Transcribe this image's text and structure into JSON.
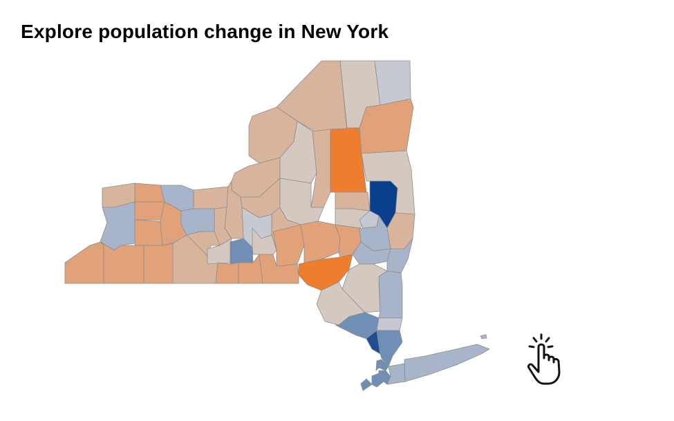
{
  "title": "Explore population change in New York",
  "palette": {
    "strong_loss": "#ef7d2e",
    "loss": "#e1a179",
    "slight_loss": "#d9b49d",
    "flat": "#d4c8c0",
    "neutral": "#c6c9d2",
    "slight_gain": "#a7b4c9",
    "gain": "#6f8fb7",
    "strong_gain": "#1f4f91",
    "max_gain": "#083e8c",
    "border": "#8d8d8d"
  },
  "icons": {
    "tap": "pointing-hand-tap-icon"
  },
  "counties": [
    {
      "id": "franklin",
      "category": "slight_loss"
    },
    {
      "id": "clinton",
      "category": "flat"
    },
    {
      "id": "essex",
      "category": "neutral"
    },
    {
      "id": "st_lawrence",
      "category": "slight_loss"
    },
    {
      "id": "jefferson",
      "category": "slight_loss"
    },
    {
      "id": "lewis",
      "category": "flat"
    },
    {
      "id": "hamilton",
      "category": "strong_loss"
    },
    {
      "id": "herkimer",
      "category": "slight_loss"
    },
    {
      "id": "warren",
      "category": "loss"
    },
    {
      "id": "washington",
      "category": "flat"
    },
    {
      "id": "saratoga",
      "category": "max_gain"
    },
    {
      "id": "fulton",
      "category": "slight_loss"
    },
    {
      "id": "montgomery",
      "category": "flat"
    },
    {
      "id": "schenectady",
      "category": "neutral"
    },
    {
      "id": "rensselaer",
      "category": "slight_loss"
    },
    {
      "id": "albany",
      "category": "slight_gain"
    },
    {
      "id": "oswego",
      "category": "slight_loss"
    },
    {
      "id": "oneida",
      "category": "flat"
    },
    {
      "id": "madison",
      "category": "slight_loss"
    },
    {
      "id": "onondaga",
      "category": "neutral"
    },
    {
      "id": "cayuga",
      "category": "slight_loss"
    },
    {
      "id": "wayne",
      "category": "slight_loss"
    },
    {
      "id": "seneca",
      "category": "slight_loss"
    },
    {
      "id": "ontario",
      "category": "slight_gain"
    },
    {
      "id": "monroe",
      "category": "slight_gain"
    },
    {
      "id": "orleans",
      "category": "loss"
    },
    {
      "id": "niagara",
      "category": "slight_loss"
    },
    {
      "id": "genesee",
      "category": "loss"
    },
    {
      "id": "livingston",
      "category": "loss"
    },
    {
      "id": "erie",
      "category": "slight_gain"
    },
    {
      "id": "wyoming",
      "category": "loss"
    },
    {
      "id": "yates",
      "category": "slight_loss"
    },
    {
      "id": "steuben",
      "category": "slight_loss"
    },
    {
      "id": "schuyler",
      "category": "flat"
    },
    {
      "id": "tompkins",
      "category": "gain"
    },
    {
      "id": "cortland",
      "category": "flat"
    },
    {
      "id": "chenango",
      "category": "loss"
    },
    {
      "id": "otsego",
      "category": "loss"
    },
    {
      "id": "schoharie",
      "category": "loss"
    },
    {
      "id": "greene",
      "category": "slight_gain"
    },
    {
      "id": "columbia",
      "category": "slight_gain"
    },
    {
      "id": "delaware",
      "category": "strong_loss"
    },
    {
      "id": "ulster",
      "category": "flat"
    },
    {
      "id": "dutchess",
      "category": "slight_gain"
    },
    {
      "id": "sullivan",
      "category": "flat"
    },
    {
      "id": "chautauqua",
      "category": "loss"
    },
    {
      "id": "cattaraugus",
      "category": "loss"
    },
    {
      "id": "allegany",
      "category": "loss"
    },
    {
      "id": "chemung",
      "category": "loss"
    },
    {
      "id": "tioga",
      "category": "loss"
    },
    {
      "id": "broome",
      "category": "loss"
    },
    {
      "id": "orange",
      "category": "gain"
    },
    {
      "id": "putnam",
      "category": "neutral"
    },
    {
      "id": "rockland",
      "category": "strong_gain"
    },
    {
      "id": "westchester",
      "category": "gain"
    },
    {
      "id": "bronx",
      "category": "gain"
    },
    {
      "id": "new_york",
      "category": "gain"
    },
    {
      "id": "richmond",
      "category": "gain"
    },
    {
      "id": "kings",
      "category": "gain"
    },
    {
      "id": "queens",
      "category": "gain"
    },
    {
      "id": "nassau",
      "category": "slight_gain"
    },
    {
      "id": "suffolk",
      "category": "slight_gain"
    }
  ]
}
